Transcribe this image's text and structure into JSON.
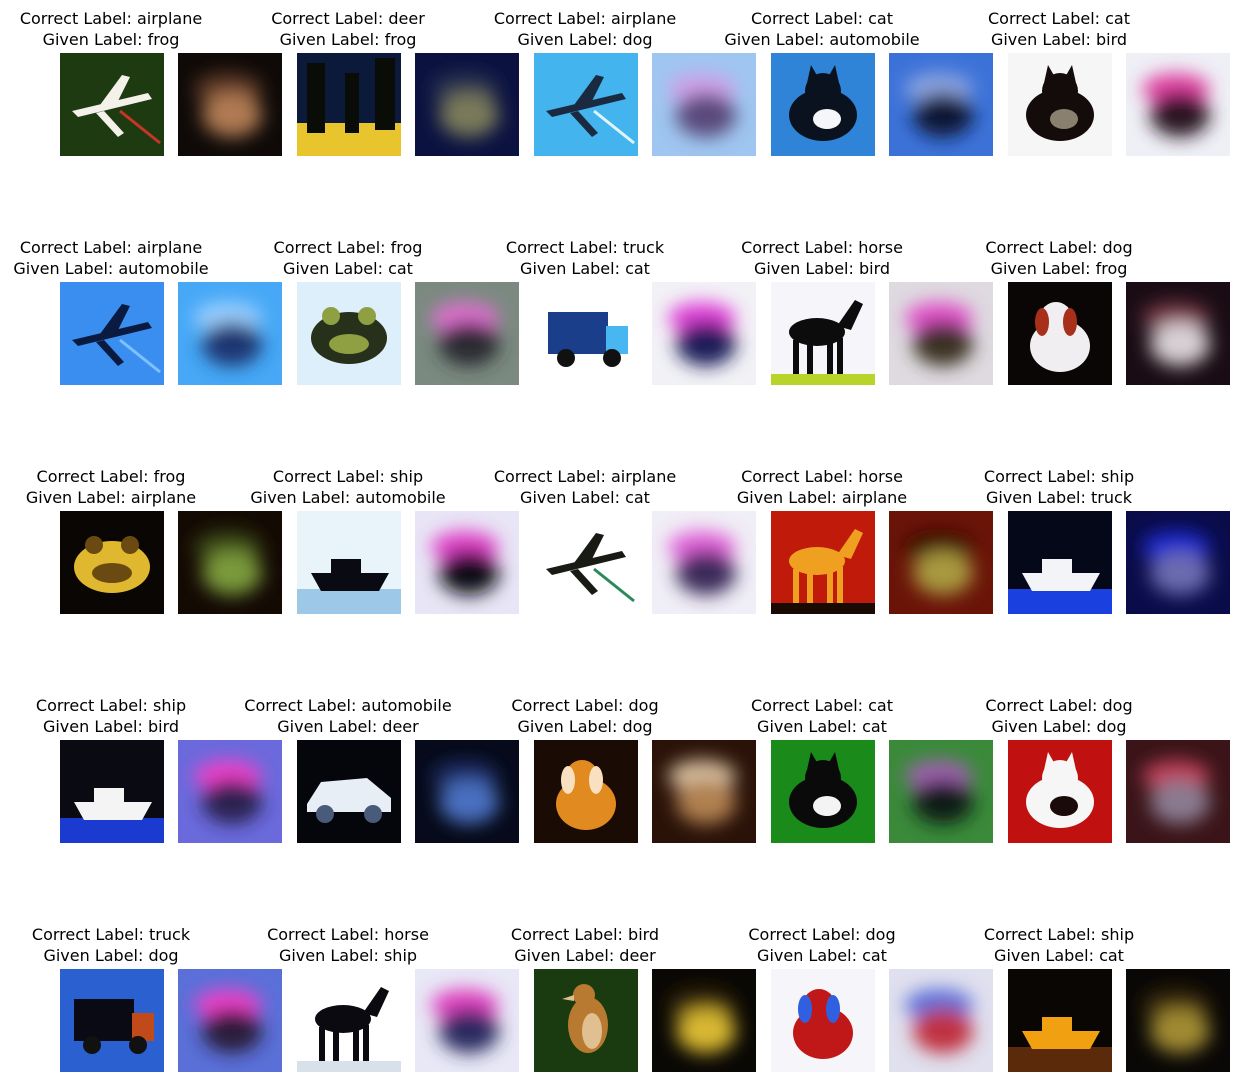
{
  "pairs": [
    {
      "correct": "Correct Label: airplane",
      "given": "Given Label: frog",
      "orig": {
        "bg": "#1d3a10",
        "c1": "#f4f0ea",
        "c2": "#c8342a",
        "icon": "airplane-icon"
      },
      "recon": {
        "bg": "#0f0a08",
        "c1": "#b07a52",
        "c2": "#5e3a26"
      }
    },
    {
      "correct": "Correct Label: deer",
      "given": "Given Label: frog",
      "orig": {
        "bg": "#0b1a3a",
        "c1": "#e8c52c",
        "c2": "#0a0c08",
        "icon": "trees-icon"
      },
      "recon": {
        "bg": "#0b1240",
        "c1": "#7a7a5a",
        "c2": "#2a3450"
      }
    },
    {
      "correct": "Correct Label: airplane",
      "given": "Given Label: dog",
      "orig": {
        "bg": "#43b4ee",
        "c1": "#1a2a40",
        "c2": "#dff4ff",
        "icon": "airplane-icon"
      },
      "recon": {
        "bg": "#9fc6f0",
        "c1": "#5a4a7a",
        "c2": "#d0a0e8"
      }
    },
    {
      "correct": "Correct Label: cat",
      "given": "Given Label: automobile",
      "orig": {
        "bg": "#2f84d8",
        "c1": "#0a1220",
        "c2": "#f4f6fa",
        "icon": "cat-icon"
      },
      "recon": {
        "bg": "#3c72d8",
        "c1": "#0a1636",
        "c2": "#8fa6e0"
      }
    },
    {
      "correct": "Correct Label: cat",
      "given": "Given Label: bird",
      "orig": {
        "bg": "#f6f6f6",
        "c1": "#140c0a",
        "c2": "#8a8070",
        "icon": "cat-icon"
      },
      "recon": {
        "bg": "#eef0f6",
        "c1": "#2a1420",
        "c2": "#e040a0"
      }
    },
    {
      "correct": "Correct Label: airplane",
      "given": "Given Label: automobile",
      "orig": {
        "bg": "#3a8ef0",
        "c1": "#0b1a40",
        "c2": "#7fc0ff",
        "icon": "airplane-icon"
      },
      "recon": {
        "bg": "#46a8f6",
        "c1": "#1a3470",
        "c2": "#9fd0ff"
      }
    },
    {
      "correct": "Correct Label: frog",
      "given": "Given Label: cat",
      "orig": {
        "bg": "#dceffa",
        "c1": "#26301a",
        "c2": "#8fa042",
        "icon": "frog-icon"
      },
      "recon": {
        "bg": "#7a8a80",
        "c1": "#2a2a30",
        "c2": "#e070d0"
      }
    },
    {
      "correct": "Correct Label: truck",
      "given": "Given Label: cat",
      "orig": {
        "bg": "#ffffff",
        "c1": "#1a3e8a",
        "c2": "#48b6f0",
        "icon": "truck-icon"
      },
      "recon": {
        "bg": "#f2f2f6",
        "c1": "#1a1a5a",
        "c2": "#e040d8"
      }
    },
    {
      "correct": "Correct Label: horse",
      "given": "Given Label: bird",
      "orig": {
        "bg": "#f6f6fa",
        "c1": "#0c0c0c",
        "c2": "#b8d42a",
        "icon": "horse-icon"
      },
      "recon": {
        "bg": "#dedae0",
        "c1": "#3a3020",
        "c2": "#e050c8"
      }
    },
    {
      "correct": "Correct Label: dog",
      "given": "Given Label: frog",
      "orig": {
        "bg": "#0a0606",
        "c1": "#f0eef0",
        "c2": "#a8301a",
        "icon": "dog-icon"
      },
      "recon": {
        "bg": "#1a0c14",
        "c1": "#d8d0d4",
        "c2": "#7a3a4a"
      }
    },
    {
      "correct": "Correct Label: frog",
      "given": "Given Label: airplane",
      "orig": {
        "bg": "#0a0604",
        "c1": "#e0b830",
        "c2": "#6a4a10",
        "icon": "frog-icon"
      },
      "recon": {
        "bg": "#140a04",
        "c1": "#7a9a3a",
        "c2": "#3a4a14"
      }
    },
    {
      "correct": "Correct Label: ship",
      "given": "Given Label: automobile",
      "orig": {
        "bg": "#e8f4fa",
        "c1": "#0a0a12",
        "c2": "#9ec8e8",
        "icon": "ship-icon"
      },
      "recon": {
        "bg": "#e8e6f6",
        "c1": "#0a0a14",
        "c2": "#e040c8"
      }
    },
    {
      "correct": "Correct Label: airplane",
      "given": "Given Label: cat",
      "orig": {
        "bg": "#ffffff",
        "c1": "#181a14",
        "c2": "#2a8a5a",
        "icon": "airplane-icon"
      },
      "recon": {
        "bg": "#f0eef6",
        "c1": "#3a2a5a",
        "c2": "#e060d8"
      }
    },
    {
      "correct": "Correct Label: horse",
      "given": "Given Label: airplane",
      "orig": {
        "bg": "#c01a0a",
        "c1": "#f0a020",
        "c2": "#1a0a04",
        "icon": "horse-icon"
      },
      "recon": {
        "bg": "#6a1408",
        "c1": "#a89a40",
        "c2": "#3a0a06"
      }
    },
    {
      "correct": "Correct Label: ship",
      "given": "Given Label: truck",
      "orig": {
        "bg": "#040818",
        "c1": "#f2f4f8",
        "c2": "#1a40e0",
        "icon": "ship-icon"
      },
      "recon": {
        "bg": "#0a0c4a",
        "c1": "#6a6ab0",
        "c2": "#1a2ad0"
      }
    },
    {
      "correct": "Correct Label: ship",
      "given": "Given Label: bird",
      "orig": {
        "bg": "#0a0a12",
        "c1": "#f4f4f4",
        "c2": "#1a3ad0",
        "icon": "ship-icon"
      },
      "recon": {
        "bg": "#6a6adc",
        "c1": "#2a2050",
        "c2": "#f040c8"
      }
    },
    {
      "correct": "Correct Label: automobile",
      "given": "Given Label: deer",
      "orig": {
        "bg": "#04060c",
        "c1": "#e8eef6",
        "c2": "#4a5a7a",
        "icon": "car-icon"
      },
      "recon": {
        "bg": "#060a1a",
        "c1": "#4a70c0",
        "c2": "#1a2a60"
      }
    },
    {
      "correct": "Correct Label: dog",
      "given": "Given Label: dog",
      "orig": {
        "bg": "#1a0c04",
        "c1": "#e08a20",
        "c2": "#f8e0c0",
        "icon": "dog-icon"
      },
      "recon": {
        "bg": "#2a1208",
        "c1": "#b08050",
        "c2": "#d8c0a0"
      }
    },
    {
      "correct": "Correct Label: cat",
      "given": "Given Label: cat",
      "orig": {
        "bg": "#1a8a1a",
        "c1": "#0a0a0a",
        "c2": "#f4f4f4",
        "icon": "cat-icon"
      },
      "recon": {
        "bg": "#3a8a3a",
        "c1": "#0a1a14",
        "c2": "#a060b0"
      }
    },
    {
      "correct": "Correct Label: dog",
      "given": "Given Label: dog",
      "orig": {
        "bg": "#c01010",
        "c1": "#f6f6f6",
        "c2": "#1a0a0a",
        "icon": "cat-icon"
      },
      "recon": {
        "bg": "#3a1418",
        "c1": "#8a7a90",
        "c2": "#c0405a"
      }
    },
    {
      "correct": "Correct Label: truck",
      "given": "Given Label: dog",
      "orig": {
        "bg": "#2a60d0",
        "c1": "#0a0a14",
        "c2": "#c04a1a",
        "icon": "truck-icon"
      },
      "recon": {
        "bg": "#5a70d8",
        "c1": "#2a1a3a",
        "c2": "#f040c8"
      }
    },
    {
      "correct": "Correct Label: horse",
      "given": "Given Label: ship",
      "orig": {
        "bg": "#ffffff",
        "c1": "#0a0a10",
        "c2": "#d8e0ea",
        "icon": "horse-icon"
      },
      "recon": {
        "bg": "#e8e8f6",
        "c1": "#2a2a60",
        "c2": "#e040c0"
      }
    },
    {
      "correct": "Correct Label: bird",
      "given": "Given Label: deer",
      "orig": {
        "bg": "#1a3a10",
        "c1": "#b87a30",
        "c2": "#e0c090",
        "icon": "bird-icon"
      },
      "recon": {
        "bg": "#0a0804",
        "c1": "#d8b830",
        "c2": "#3a2a0a"
      }
    },
    {
      "correct": "Correct Label: dog",
      "given": "Given Label: cat",
      "orig": {
        "bg": "#f6f6fa",
        "c1": "#c01818",
        "c2": "#3060e0",
        "icon": "dog-icon"
      },
      "recon": {
        "bg": "#e0e0ee",
        "c1": "#c03040",
        "c2": "#5a70d8"
      }
    },
    {
      "correct": "Correct Label: ship",
      "given": "Given Label: cat",
      "orig": {
        "bg": "#0a0604",
        "c1": "#f0a010",
        "c2": "#5a2a0a",
        "icon": "ship-icon"
      },
      "recon": {
        "bg": "#0a0806",
        "c1": "#a08a30",
        "c2": "#3a2a10"
      }
    }
  ]
}
